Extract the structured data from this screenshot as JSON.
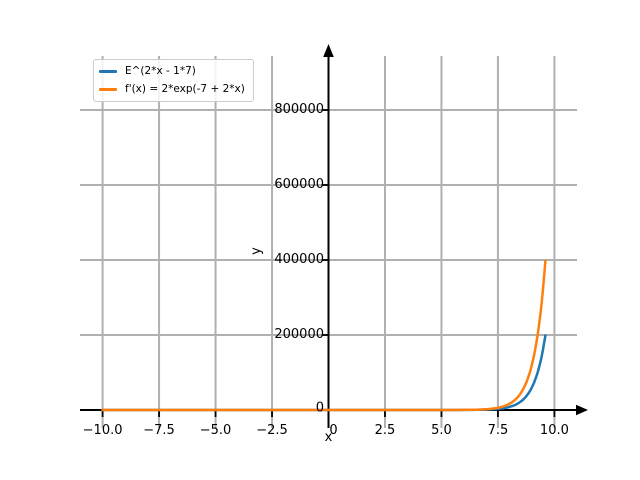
{
  "chart_data": {
    "type": "line",
    "title": "",
    "xlabel": "x",
    "ylabel": "y",
    "xlim": [
      -11,
      11
    ],
    "ylim": [
      -48000,
      944000
    ],
    "xticks": [
      -10.0,
      -7.5,
      -5.0,
      -2.5,
      0,
      2.5,
      5.0,
      7.5,
      10.0
    ],
    "xtick_labels": [
      "−10.0",
      "−7.5",
      "−5.0",
      "−2.5",
      "0",
      "2.5",
      "5.0",
      "7.5",
      "10.0"
    ],
    "yticks": [
      0,
      200000,
      400000,
      600000,
      800000
    ],
    "ytick_labels": [
      "0",
      "200000",
      "400000",
      "600000",
      "800000"
    ],
    "grid": true,
    "colors": {
      "grid": "#b0b0b0",
      "axis": "#000000",
      "text": "#000000",
      "background": "#ffffff"
    },
    "legend": {
      "position": "upper-left"
    },
    "x_sample": {
      "start": -10,
      "stop": 9.6,
      "step": 0.4
    },
    "series": [
      {
        "name": "E^(2*x - 1*7)",
        "color": "#1f77b4",
        "formula": "y = exp(2*x - 7)",
        "exp": {
          "amp": 1,
          "a": 2,
          "b": -7
        },
        "points": [
          [
            3.6,
            1.2
          ],
          [
            4.0,
            2.7
          ],
          [
            4.4,
            6.0
          ],
          [
            4.8,
            13.5
          ],
          [
            5.2,
            30.0
          ],
          [
            5.6,
            66.7
          ],
          [
            6.0,
            148.4
          ],
          [
            6.4,
            330.3
          ],
          [
            6.8,
            735.1
          ],
          [
            7.2,
            1636
          ],
          [
            7.6,
            3641
          ],
          [
            8.0,
            8103
          ],
          [
            8.4,
            18034
          ],
          [
            8.8,
            40135
          ],
          [
            9.2,
            89322
          ],
          [
            9.6,
            198789
          ]
        ]
      },
      {
        "name": "f'(x) = 2*exp(-7 + 2*x)",
        "color": "#ff7f0e",
        "formula": "y = 2*exp(-7 + 2*x)",
        "exp": {
          "amp": 2,
          "a": 2,
          "b": -7
        },
        "points": [
          [
            3.6,
            2.4
          ],
          [
            4.0,
            5.4
          ],
          [
            4.4,
            12.1
          ],
          [
            4.8,
            26.9
          ],
          [
            5.2,
            59.9
          ],
          [
            5.6,
            133.4
          ],
          [
            6.0,
            296.8
          ],
          [
            6.4,
            660.6
          ],
          [
            6.8,
            1470.2
          ],
          [
            7.2,
            3272
          ],
          [
            7.6,
            7282
          ],
          [
            8.0,
            16206
          ],
          [
            8.4,
            36067
          ],
          [
            8.8,
            80270
          ],
          [
            9.2,
            178643
          ],
          [
            9.6,
            397578
          ]
        ]
      }
    ]
  }
}
